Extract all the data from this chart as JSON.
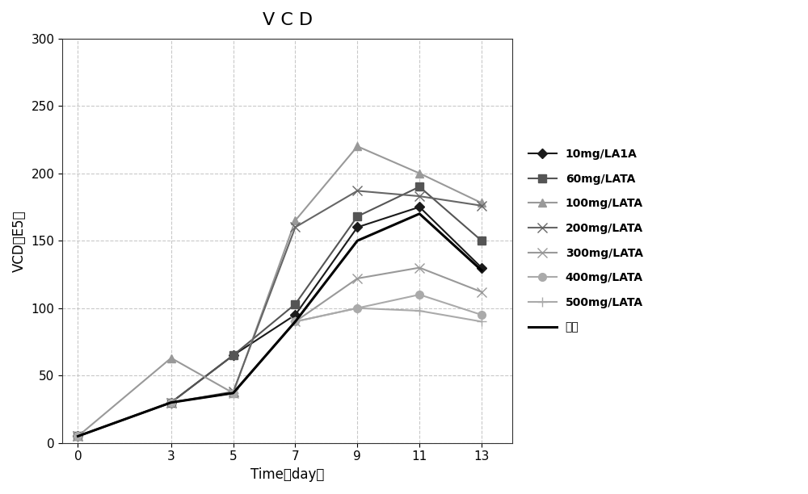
{
  "title": "V C D",
  "xlabel": "Time（day）",
  "ylabel": "VCD（E5）",
  "x": [
    0,
    3,
    5,
    7,
    9,
    11,
    13
  ],
  "series": [
    {
      "label": "10mg/LA1A",
      "color": "#1a1a1a",
      "marker": "D",
      "markersize": 6,
      "linewidth": 1.5,
      "linestyle": "-",
      "values": [
        5,
        30,
        65,
        95,
        160,
        175,
        130
      ]
    },
    {
      "label": "60mg/LATA",
      "color": "#555555",
      "marker": "s",
      "markersize": 7,
      "linewidth": 1.5,
      "linestyle": "-",
      "values": [
        5,
        30,
        65,
        103,
        168,
        190,
        150
      ]
    },
    {
      "label": "100mg/LATA",
      "color": "#999999",
      "marker": "^",
      "markersize": 7,
      "linewidth": 1.5,
      "linestyle": "-",
      "values": [
        5,
        63,
        37,
        165,
        220,
        200,
        178
      ]
    },
    {
      "label": "200mg/LATA",
      "color": "#666666",
      "marker": "x",
      "markersize": 8,
      "linewidth": 1.5,
      "linestyle": "-",
      "values": [
        5,
        30,
        38,
        160,
        187,
        183,
        176
      ]
    },
    {
      "label": "300mg/LATA",
      "color": "#999999",
      "marker": "x",
      "markersize": 8,
      "linewidth": 1.5,
      "linestyle": "-",
      "values": [
        5,
        30,
        37,
        90,
        122,
        130,
        112
      ]
    },
    {
      "label": "400mg/LATA",
      "color": "#aaaaaa",
      "marker": "o",
      "markersize": 7,
      "linewidth": 1.5,
      "linestyle": "-",
      "values": [
        5,
        30,
        37,
        90,
        100,
        110,
        95
      ]
    },
    {
      "label": "500mg/LATA",
      "color": "#aaaaaa",
      "marker": "+",
      "markersize": 9,
      "linewidth": 1.5,
      "linestyle": "-",
      "values": [
        5,
        30,
        37,
        90,
        100,
        98,
        90
      ]
    },
    {
      "label": "对照",
      "color": "#000000",
      "marker": "None",
      "markersize": 0,
      "linewidth": 2.2,
      "linestyle": "-",
      "values": [
        5,
        30,
        37,
        90,
        150,
        170,
        128
      ]
    }
  ],
  "ylim": [
    0,
    300
  ],
  "yticks": [
    0,
    50,
    100,
    150,
    200,
    250,
    300
  ],
  "xticks": [
    0,
    3,
    5,
    7,
    9,
    11,
    13
  ],
  "background_color": "#ffffff",
  "title_fontsize": 16,
  "label_fontsize": 12,
  "tick_fontsize": 11,
  "legend_fontsize": 10
}
